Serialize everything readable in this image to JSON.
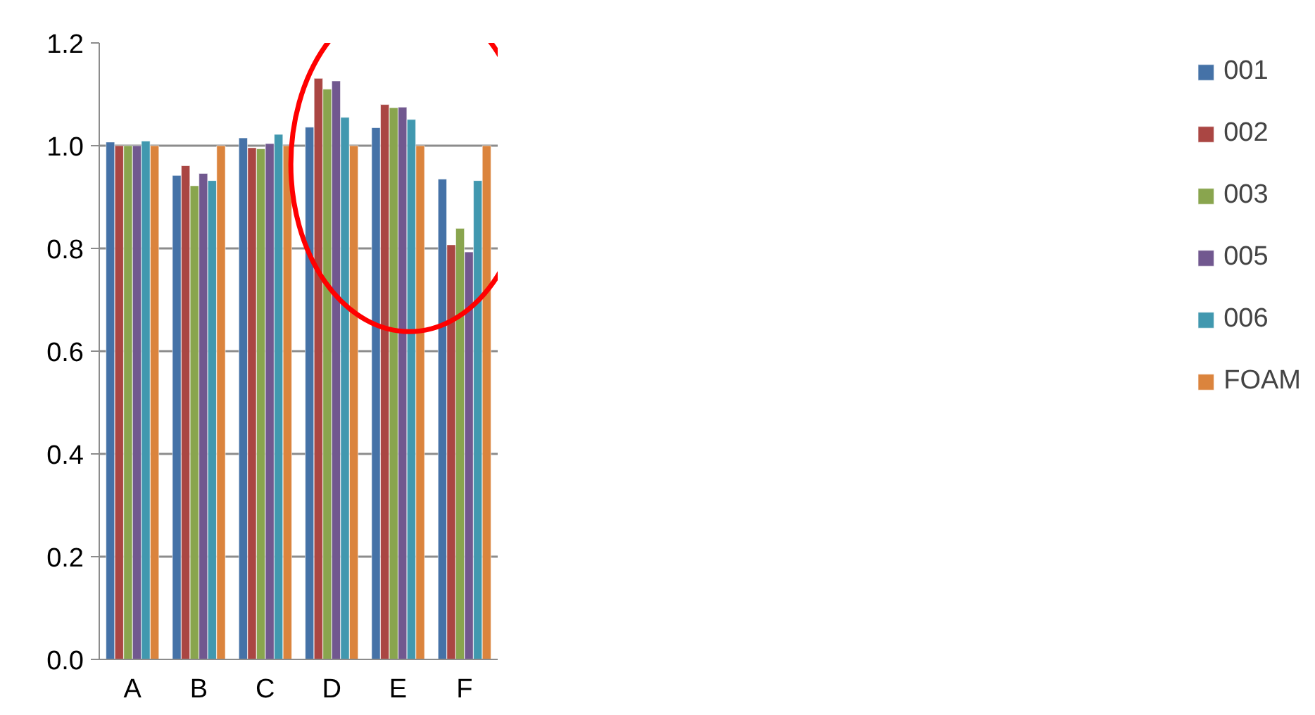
{
  "chart_data": {
    "type": "bar",
    "categories": [
      "A",
      "B",
      "C",
      "D",
      "E",
      "F"
    ],
    "series": [
      {
        "name": "001",
        "color": "#4572a7",
        "values": [
          1.007,
          0.942,
          1.015,
          1.036,
          1.035,
          0.935
        ]
      },
      {
        "name": "002",
        "color": "#aa4643",
        "values": [
          1.0,
          0.961,
          0.996,
          1.131,
          1.08,
          0.807
        ]
      },
      {
        "name": "003",
        "color": "#89a54e",
        "values": [
          1.0,
          0.922,
          0.994,
          1.11,
          1.074,
          0.839
        ]
      },
      {
        "name": "005",
        "color": "#71588f",
        "values": [
          1.0,
          0.946,
          1.004,
          1.126,
          1.075,
          0.793
        ]
      },
      {
        "name": "006",
        "color": "#4198af",
        "values": [
          1.009,
          0.932,
          1.022,
          1.055,
          1.051,
          0.932
        ]
      },
      {
        "name": "FOAM",
        "color": "#db843d",
        "values": [
          1.0,
          1.0,
          1.0,
          1.0,
          1.0,
          1.0
        ]
      }
    ],
    "ylim": [
      0,
      1.2
    ],
    "yticks": [
      {
        "value": 0,
        "label": "0.0"
      },
      {
        "value": 0.2,
        "label": "0.2"
      },
      {
        "value": 0.4,
        "label": "0.4"
      },
      {
        "value": 0.6,
        "label": "0.6"
      },
      {
        "value": 0.8,
        "label": "0.8"
      },
      {
        "value": 1.0,
        "label": "1.0"
      },
      {
        "value": 1.2,
        "label": "1.2"
      }
    ],
    "grid": "y",
    "legend": "right"
  }
}
